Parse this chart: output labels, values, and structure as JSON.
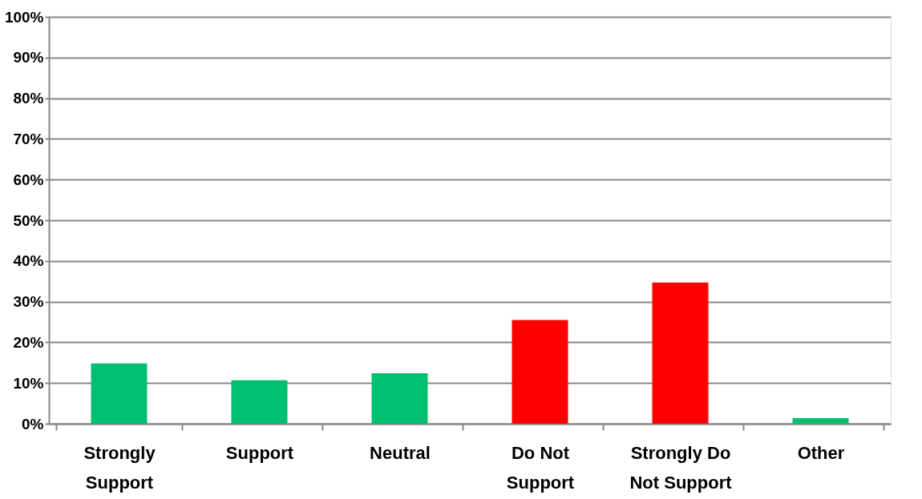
{
  "chart_data": {
    "type": "bar",
    "categories": [
      "Strongly\nSupport",
      "Support",
      "Neutral",
      "Do Not\nSupport",
      "Strongly Do\nNot Support",
      "Other"
    ],
    "values": [
      14.8,
      10.7,
      12.4,
      25.5,
      34.7,
      1.4
    ],
    "colors": [
      "#00bf6f",
      "#00bf6f",
      "#00bf6f",
      "#ff0000",
      "#ff0000",
      "#00bf6f"
    ],
    "ylim": [
      0,
      100
    ],
    "yticks": [
      {
        "value": 0,
        "label": "0%"
      },
      {
        "value": 10,
        "label": "10%"
      },
      {
        "value": 20,
        "label": "20%"
      },
      {
        "value": 30,
        "label": "30%"
      },
      {
        "value": 40,
        "label": "40%"
      },
      {
        "value": 50,
        "label": "50%"
      },
      {
        "value": 60,
        "label": "60%"
      },
      {
        "value": 70,
        "label": "70%"
      },
      {
        "value": 80,
        "label": "80%"
      },
      {
        "value": 90,
        "label": "90%"
      },
      {
        "value": 100,
        "label": "100%"
      }
    ],
    "grid": "y"
  }
}
